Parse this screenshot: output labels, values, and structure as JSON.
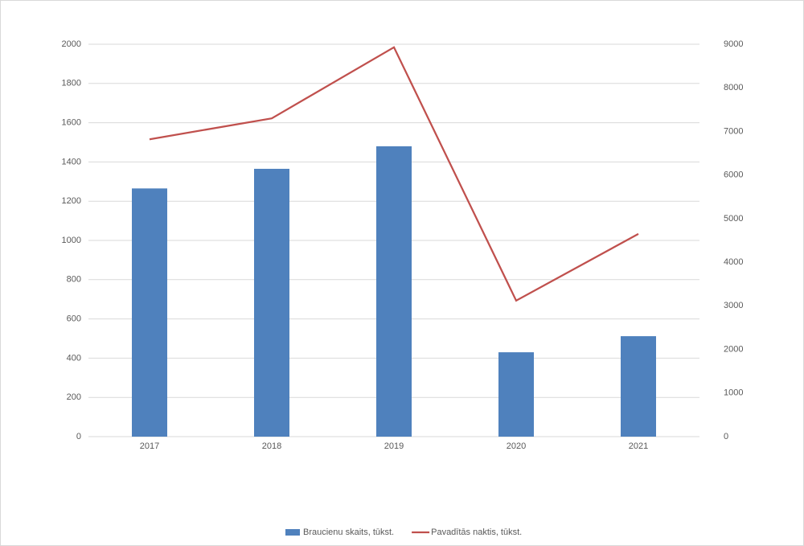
{
  "chart_data": {
    "type": "bar-line",
    "categories": [
      "2017",
      "2018",
      "2019",
      "2020",
      "2021"
    ],
    "series": [
      {
        "name": "Braucienu skaits, tūkst.",
        "color": "#4f81bd",
        "type": "bar",
        "values": [
          1265,
          1365,
          1480,
          430,
          512
        ]
      },
      {
        "name": "Pavadītās naktis, tūkst.",
        "color": "#c0504d",
        "type": "line",
        "axis": "y2",
        "values": [
          6820,
          7300,
          8930,
          3120,
          4650
        ]
      }
    ],
    "ylim": [
      0,
      2000
    ],
    "yticks": [
      0,
      200,
      400,
      600,
      800,
      1000,
      1200,
      1400,
      1600,
      1800,
      2000
    ],
    "y2lim": [
      0,
      9000
    ],
    "y2ticks": [
      0,
      1000,
      2000,
      3000,
      4000,
      5000,
      6000,
      7000,
      8000,
      9000
    ],
    "grid": true,
    "legend": "bottom"
  }
}
